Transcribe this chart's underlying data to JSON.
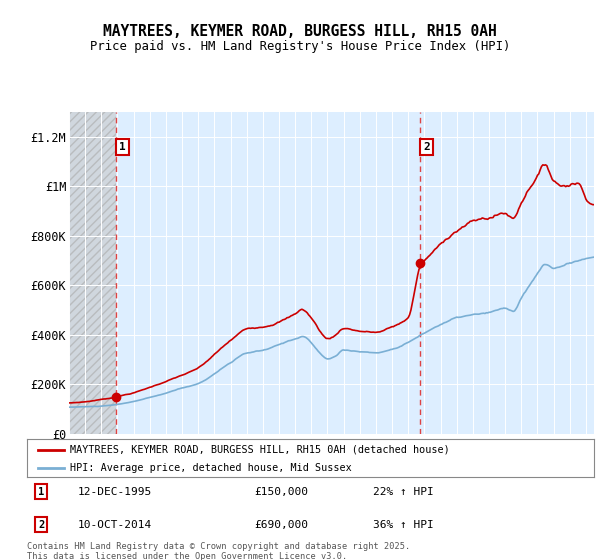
{
  "title": "MAYTREES, KEYMER ROAD, BURGESS HILL, RH15 0AH",
  "subtitle": "Price paid vs. HM Land Registry's House Price Index (HPI)",
  "ylim": [
    0,
    1300000
  ],
  "yticks": [
    0,
    200000,
    400000,
    600000,
    800000,
    1000000,
    1200000
  ],
  "ytick_labels": [
    "£0",
    "£200K",
    "£400K",
    "£600K",
    "£800K",
    "£1M",
    "£1.2M"
  ],
  "sale1_x": 1995.917,
  "sale1_price": 150000,
  "sale2_x": 2014.75,
  "sale2_price": 690000,
  "line_color_house": "#cc0000",
  "line_color_hpi": "#7aafd4",
  "plot_bg_color": "#ddeeff",
  "legend_label_house": "MAYTREES, KEYMER ROAD, BURGESS HILL, RH15 0AH (detached house)",
  "legend_label_hpi": "HPI: Average price, detached house, Mid Sussex",
  "footer": "Contains HM Land Registry data © Crown copyright and database right 2025.\nThis data is licensed under the Open Government Licence v3.0.",
  "xmin": 1993.0,
  "xmax": 2025.5
}
